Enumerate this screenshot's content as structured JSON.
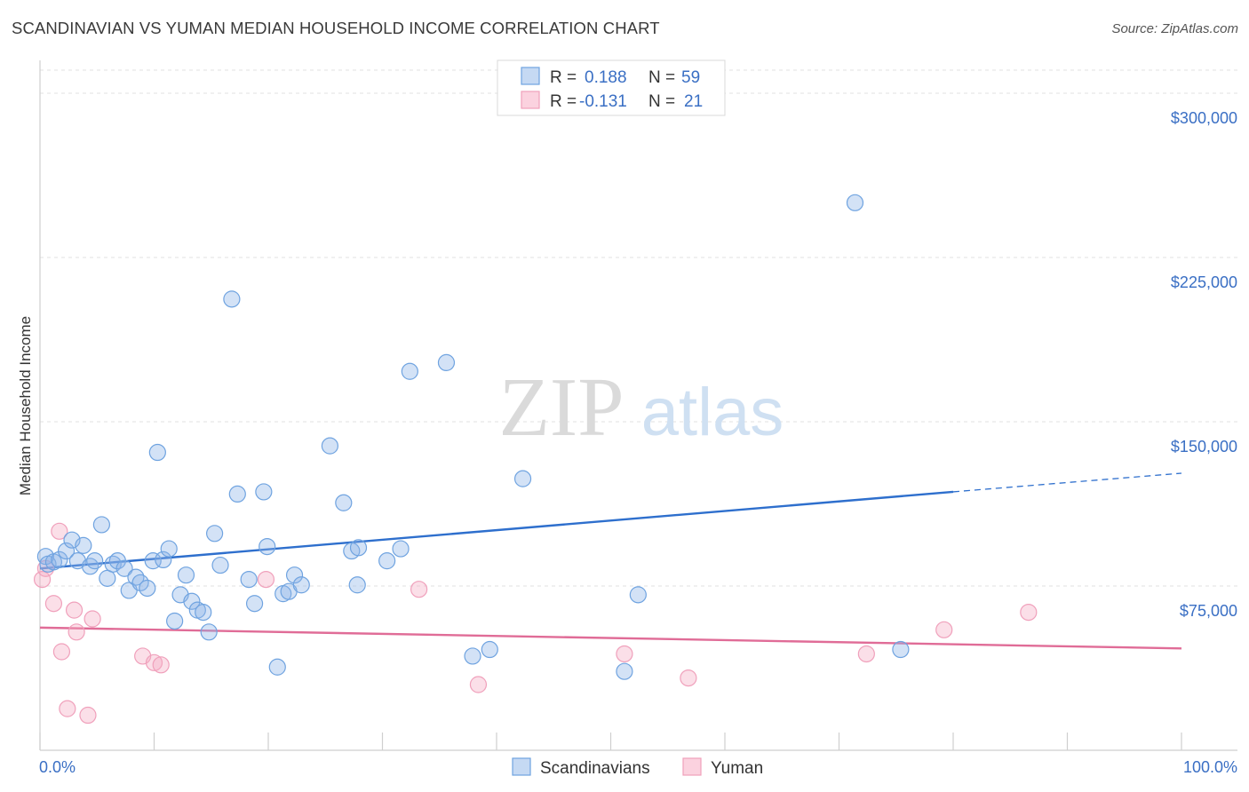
{
  "chart_data": {
    "type": "scatter",
    "title": "SCANDINAVIAN VS YUMAN MEDIAN HOUSEHOLD INCOME CORRELATION CHART",
    "source": "Source: ZipAtlas.com",
    "xlabel": "",
    "ylabel": "Median Household Income",
    "xlim": [
      0,
      100
    ],
    "ylim": [
      0,
      315000
    ],
    "x_tick_labels": [
      "0.0%",
      "100.0%"
    ],
    "y_ticks": [
      {
        "value": 75000,
        "label": "$75,000"
      },
      {
        "value": 150000,
        "label": "$150,000"
      },
      {
        "value": 225000,
        "label": "$225,000"
      },
      {
        "value": 300000,
        "label": "$300,000"
      }
    ],
    "watermark": {
      "part1": "ZIP",
      "part2": "atlas"
    },
    "legend": [
      {
        "r_label": "R =",
        "r_value": "0.188",
        "n_label": "N =",
        "n_value": "59"
      },
      {
        "r_label": "R =",
        "r_value": "-0.131",
        "n_label": "N =",
        "n_value": "21"
      }
    ],
    "colors": {
      "series1": "#6fa3e0",
      "series1_line": "#2e6fcd",
      "series2": "#f0a0bb",
      "series2_line": "#e06c97"
    },
    "series": [
      {
        "name": "Scandinavians",
        "trend": {
          "x0": 0,
          "y0": 83000,
          "x1": 80,
          "y1": 118000,
          "x_dash_end": 100,
          "y_dash_end": 126500
        },
        "points": [
          [
            0.5,
            88500
          ],
          [
            0.7,
            85000
          ],
          [
            1.2,
            86000
          ],
          [
            1.7,
            87000
          ],
          [
            2.3,
            91000
          ],
          [
            2.8,
            96000
          ],
          [
            3.3,
            86500
          ],
          [
            3.8,
            93500
          ],
          [
            4.4,
            84000
          ],
          [
            4.8,
            86500
          ],
          [
            5.4,
            103000
          ],
          [
            5.9,
            78500
          ],
          [
            6.4,
            85000
          ],
          [
            6.8,
            86500
          ],
          [
            7.4,
            83000
          ],
          [
            7.8,
            73000
          ],
          [
            8.4,
            79000
          ],
          [
            8.8,
            76500
          ],
          [
            9.4,
            74000
          ],
          [
            9.9,
            86500
          ],
          [
            10.3,
            136000
          ],
          [
            10.8,
            87000
          ],
          [
            11.3,
            92000
          ],
          [
            11.8,
            59000
          ],
          [
            12.3,
            71000
          ],
          [
            12.8,
            80000
          ],
          [
            13.3,
            68000
          ],
          [
            13.8,
            64000
          ],
          [
            14.3,
            63000
          ],
          [
            14.8,
            54000
          ],
          [
            15.3,
            99000
          ],
          [
            15.8,
            84500
          ],
          [
            16.8,
            206000
          ],
          [
            17.3,
            117000
          ],
          [
            18.3,
            78000
          ],
          [
            18.8,
            67000
          ],
          [
            19.6,
            118000
          ],
          [
            19.9,
            93000
          ],
          [
            20.8,
            38000
          ],
          [
            21.3,
            71500
          ],
          [
            21.8,
            72500
          ],
          [
            22.3,
            80000
          ],
          [
            22.9,
            75500
          ],
          [
            25.4,
            139000
          ],
          [
            26.6,
            113000
          ],
          [
            27.3,
            91000
          ],
          [
            27.8,
            75500
          ],
          [
            27.9,
            92500
          ],
          [
            30.4,
            86500
          ],
          [
            31.6,
            92000
          ],
          [
            32.4,
            173000
          ],
          [
            35.6,
            177000
          ],
          [
            37.9,
            43000
          ],
          [
            39.4,
            46000
          ],
          [
            42.3,
            124000
          ],
          [
            51.2,
            36000
          ],
          [
            52.4,
            71000
          ],
          [
            71.4,
            250000
          ],
          [
            75.4,
            46000
          ]
        ]
      },
      {
        "name": "Yuman",
        "trend": {
          "x0": 0,
          "y0": 56000,
          "x1": 100,
          "y1": 46500
        },
        "points": [
          [
            0.2,
            78000
          ],
          [
            0.5,
            83000
          ],
          [
            1.2,
            67000
          ],
          [
            1.7,
            100000
          ],
          [
            1.9,
            45000
          ],
          [
            2.4,
            19000
          ],
          [
            3.0,
            64000
          ],
          [
            3.2,
            54000
          ],
          [
            4.2,
            16000
          ],
          [
            4.6,
            60000
          ],
          [
            9.0,
            43000
          ],
          [
            10.0,
            40000
          ],
          [
            10.6,
            39000
          ],
          [
            19.8,
            78000
          ],
          [
            33.2,
            73500
          ],
          [
            38.4,
            30000
          ],
          [
            51.2,
            44000
          ],
          [
            56.8,
            33000
          ],
          [
            72.4,
            44000
          ],
          [
            79.2,
            55000
          ],
          [
            86.6,
            63000
          ]
        ]
      }
    ]
  }
}
